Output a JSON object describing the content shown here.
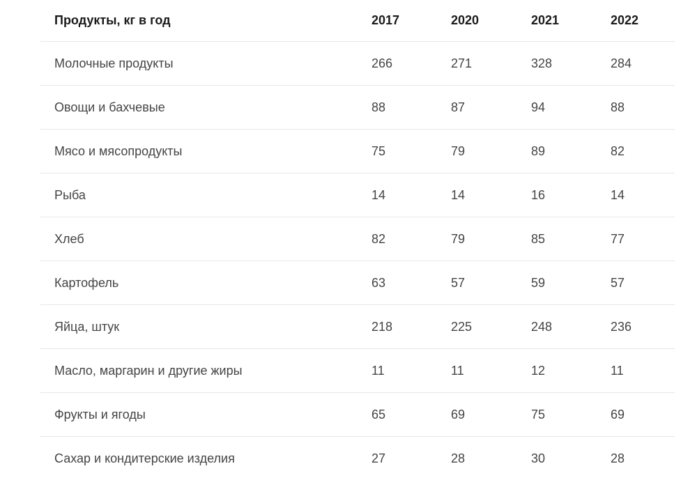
{
  "chart_data": {
    "type": "table",
    "title": "Продукты, кг в год",
    "columns": [
      "2017",
      "2020",
      "2021",
      "2022"
    ],
    "rows": [
      {
        "label": "Молочные продукты",
        "values": [
          266,
          271,
          328,
          284
        ]
      },
      {
        "label": "Овощи и бахчевые",
        "values": [
          88,
          87,
          94,
          88
        ]
      },
      {
        "label": "Мясо и мясопродукты",
        "values": [
          75,
          79,
          89,
          82
        ]
      },
      {
        "label": "Рыба",
        "values": [
          14,
          14,
          16,
          14
        ]
      },
      {
        "label": "Хлеб",
        "values": [
          82,
          79,
          85,
          77
        ]
      },
      {
        "label": "Картофель",
        "values": [
          63,
          57,
          59,
          57
        ]
      },
      {
        "label": "Яйца, штук",
        "values": [
          218,
          225,
          248,
          236
        ]
      },
      {
        "label": "Масло, маргарин и другие жиры",
        "values": [
          11,
          11,
          12,
          11
        ]
      },
      {
        "label": "Фрукты и ягоды",
        "values": [
          65,
          69,
          75,
          69
        ]
      },
      {
        "label": "Сахар и кондитерские изделия",
        "values": [
          27,
          28,
          30,
          28
        ]
      }
    ],
    "layout": {
      "grid": "horizontal-dividers-only",
      "value_alignment": "left"
    }
  },
  "colors": {
    "background": "#ffffff",
    "header_text": "#1a1a1a",
    "body_text": "#444444",
    "divider": "#e7e7e7"
  }
}
